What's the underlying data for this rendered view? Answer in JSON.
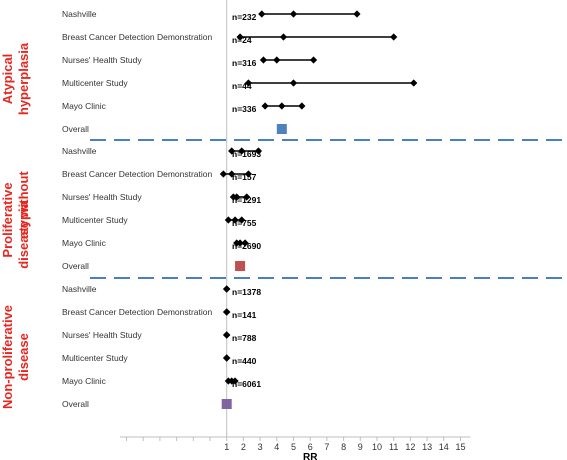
{
  "chart_data": {
    "type": "forest",
    "xlabel": "RR",
    "xlim": [
      0,
      15
    ],
    "xticks": [
      1,
      2,
      3,
      4,
      5,
      6,
      7,
      8,
      9,
      10,
      11,
      12,
      13,
      14,
      15
    ],
    "reference_line": 1,
    "colors": {
      "line": "#000000",
      "group_label": "#e8261f",
      "separator": "#4a7fc1",
      "overall_atypical": "#4f81bd",
      "overall_proliferative": "#c0504d",
      "overall_nonproliferative": "#8064a2"
    },
    "groups": [
      {
        "label_lines": [
          "Atypical",
          "hyperplasia"
        ],
        "studies": [
          {
            "name": "Nashville",
            "n": "n=232",
            "low": 3.1,
            "rr": 5.0,
            "high": 8.8
          },
          {
            "name": "Breast Cancer Detection Demonstration",
            "n": "n=24",
            "low": 1.8,
            "rr": 4.4,
            "high": 11.0
          },
          {
            "name": "Nurses' Health Study",
            "n": "n=316",
            "low": 3.2,
            "rr": 4.0,
            "high": 6.2
          },
          {
            "name": "Multicenter Study",
            "n": "n=44",
            "low": 2.3,
            "rr": 5.0,
            "high": 12.2
          },
          {
            "name": "Mayo Clinic",
            "n": "n=336",
            "low": 3.3,
            "rr": 4.3,
            "high": 5.5
          }
        ],
        "overall_label": "Overall",
        "overall": 4.3,
        "overall_color": "#4f81bd"
      },
      {
        "label_lines": [
          "Proliferative",
          "disease without",
          "atypia"
        ],
        "studies": [
          {
            "name": "Nashville",
            "n": "n=1693",
            "low": 1.3,
            "rr": 1.9,
            "high": 2.9
          },
          {
            "name": "Breast Cancer Detection Demonstration",
            "n": "n=157",
            "low": 0.8,
            "rr": 1.3,
            "high": 2.3
          },
          {
            "name": "Nurses' Health Study",
            "n": "n=1291",
            "low": 1.4,
            "rr": 1.6,
            "high": 2.2
          },
          {
            "name": "Multicenter Study",
            "n": "n=755",
            "low": 1.1,
            "rr": 1.5,
            "high": 1.9
          },
          {
            "name": "Mayo Clinic",
            "n": "n=2690",
            "low": 1.6,
            "rr": 1.8,
            "high": 2.1
          }
        ],
        "overall_label": "Overall",
        "overall": 1.8,
        "overall_color": "#c0504d"
      },
      {
        "label_lines": [
          "Non-proliferative",
          "disease"
        ],
        "studies": [
          {
            "name": "Nashville",
            "n": "n=1378",
            "low": 1.0,
            "rr": 1.0,
            "high": 1.0
          },
          {
            "name": "Breast Cancer Detection Demonstration",
            "n": "n=141",
            "low": 1.0,
            "rr": 1.0,
            "high": 1.0
          },
          {
            "name": "Nurses' Health Study",
            "n": "n=788",
            "low": 1.0,
            "rr": 1.0,
            "high": 1.0
          },
          {
            "name": "Multicenter Study",
            "n": "n=440",
            "low": 1.0,
            "rr": 1.0,
            "high": 1.0
          },
          {
            "name": "Mayo Clinic",
            "n": "n=6061",
            "low": 1.1,
            "rr": 1.3,
            "high": 1.5
          }
        ],
        "overall_label": "Overall",
        "overall": 1.0,
        "overall_color": "#8064a2"
      }
    ]
  }
}
